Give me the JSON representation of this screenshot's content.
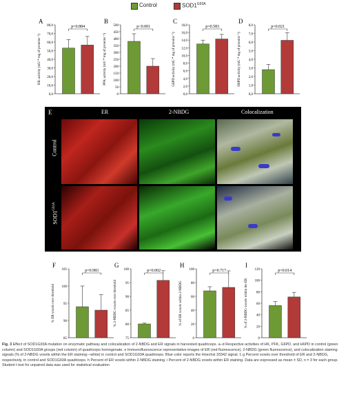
{
  "legend": {
    "control": "Control",
    "sod1_base": "SOD1",
    "sod1_sup": "G93A"
  },
  "colors": {
    "control": "#6e9a35",
    "sod1": "#b23a38"
  },
  "top_panels": [
    {
      "letter": "A",
      "ylabel": "HK activity (mU * mg of proteins⁻¹)",
      "ticks": [
        "0,0",
        "10,0",
        "20,0",
        "30,0",
        "40,0",
        "50,0",
        "60,0",
        "70,0",
        "80,0"
      ],
      "pval": "p=0.884"
    },
    {
      "letter": "B",
      "ylabel": "PFK activity (mU * mg of proteins⁻¹)",
      "ticks": [
        "0",
        "50",
        "100",
        "150",
        "200",
        "250",
        "300",
        "350",
        "400",
        "450",
        "500"
      ],
      "pval": "p<0.001"
    },
    {
      "letter": "C",
      "ylabel": "G6PD activity (mU * mg of proteins⁻¹)",
      "ticks": [
        "0,0",
        "2,0",
        "4,0",
        "6,0",
        "8,0",
        "10,0",
        "12,0",
        "14,0",
        "16,0",
        "18,0"
      ],
      "pval": "p=0.583"
    },
    {
      "letter": "D",
      "ylabel": "H6PD activity (mU * mg of proteins⁻¹)",
      "ticks": [
        "0,0",
        "1,0",
        "2,0",
        "3,0",
        "4,0",
        "5,0",
        "6,0",
        "7,0",
        "8,0"
      ],
      "pval": "p=0.021"
    }
  ],
  "panel_e": {
    "letter": "E",
    "col_er": "ER",
    "col_nbdg": "2-NBDG",
    "col_coloc": "Colocalization",
    "row_control": "Control",
    "row_sod1_base": "SOD1",
    "row_sod1_sup": "G93A"
  },
  "bottom_panels": [
    {
      "letter": "F",
      "ylabel": "% ER voxels over threshold",
      "ticks": [
        "85",
        "90",
        "95",
        "100",
        "105"
      ],
      "pval": "p=0.983"
    },
    {
      "letter": "G",
      "ylabel": "% 2-NBDG voxels over threshold",
      "ticks": [
        "75",
        "80",
        "85",
        "90",
        "95",
        "100"
      ],
      "pval": "p=0.002"
    },
    {
      "letter": "H",
      "ylabel": "% of ER voxels within 2-NBDG",
      "ticks": [
        "0",
        "20",
        "40",
        "60",
        "80",
        "100"
      ],
      "pval": "p=0.717"
    },
    {
      "letter": "I",
      "ylabel": "% of 2-NBDG voxels within the ER",
      "ticks": [
        "0",
        "20",
        "40",
        "60",
        "80",
        "100",
        "120"
      ],
      "pval": "p=0.014"
    }
  ],
  "chart_data": [
    {
      "type": "bar",
      "panel": "A",
      "categories": [
        "Control",
        "SOD1G93A"
      ],
      "values": [
        53,
        56.5
      ],
      "errors": [
        10,
        10
      ],
      "ylim": [
        0,
        80
      ],
      "ylabel": "HK activity (mU * mg of proteins⁻¹)"
    },
    {
      "type": "bar",
      "panel": "B",
      "categories": [
        "Control",
        "SOD1G93A"
      ],
      "values": [
        380,
        200
      ],
      "errors": [
        55,
        55
      ],
      "ylim": [
        0,
        500
      ],
      "ylabel": "PFK activity (mU * mg of proteins⁻¹)"
    },
    {
      "type": "bar",
      "panel": "C",
      "categories": [
        "Control",
        "SOD1G93A"
      ],
      "values": [
        13,
        14.3
      ],
      "errors": [
        1,
        1.2
      ],
      "ylim": [
        0,
        18
      ],
      "ylabel": "G6PD activity (mU * mg of proteins⁻¹)"
    },
    {
      "type": "bar",
      "panel": "D",
      "categories": [
        "Control",
        "SOD1G93A"
      ],
      "values": [
        2.8,
        6.2
      ],
      "errors": [
        0.6,
        0.9
      ],
      "ylim": [
        0,
        8
      ],
      "ylabel": "H6PD activity (mU * mg of proteins⁻¹)"
    },
    {
      "type": "bar",
      "panel": "F",
      "categories": [
        "Control",
        "SOD1G93A"
      ],
      "values": [
        94,
        93
      ],
      "errors": [
        6,
        4.5
      ],
      "ylim": [
        85,
        105
      ],
      "ylabel": "% ER voxels over threshold"
    },
    {
      "type": "bar",
      "panel": "G",
      "categories": [
        "Control",
        "SOD1G93A"
      ],
      "values": [
        80,
        95.8
      ],
      "errors": [
        0.3,
        3.5
      ],
      "ylim": [
        75,
        100
      ],
      "ylabel": "% 2-NBDG voxels over threshold"
    },
    {
      "type": "bar",
      "panel": "H",
      "categories": [
        "Control",
        "SOD1G93A"
      ],
      "values": [
        68,
        73
      ],
      "errors": [
        6,
        24
      ],
      "ylim": [
        0,
        100
      ],
      "ylabel": "% of ER voxels within 2-NBDG"
    },
    {
      "type": "bar",
      "panel": "I",
      "categories": [
        "Control",
        "SOD1G93A"
      ],
      "values": [
        56,
        71
      ],
      "errors": [
        7,
        8
      ],
      "ylim": [
        0,
        120
      ],
      "ylabel": "% of 2-NBDG voxels within the ER"
    }
  ],
  "caption": {
    "fig_label": "Fig. 3",
    "text": " Effect of SOD1G93A mutation on enzymatic pathway and colocalization of 2-NBDG and ER signals in harvested quadriceps. a–d Respective activities of HK, PFK, G6PD, and H6PD in control (green column) and SOD1G93A groups (red column) of quadriceps homogenate. e Immunofluorescence representative images of ER (red fluorescence), 2-NBDG (green fluorescence), and colocalization staining signals (% of 2-NBDG voxels within the ER staining—white) in control and SOD1G93A quadriceps. Blue color reports the Hoechst 33342 signal. f, g Percent voxels over threshold of ER and 2-NBDG, respectively, in control and SOD1G93A quadriceps. h Percent of ER voxels within 2-NBDG staining. i Percent of 2-NBDG voxels within ER staining. Data are expressed as mean ± SD, n = 3 for each group. Student t test for unpaired data was used for statistical evaluation"
  }
}
